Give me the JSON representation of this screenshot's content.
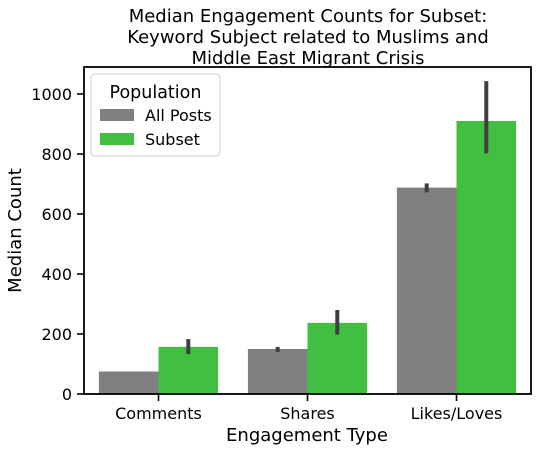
{
  "chart_data": {
    "type": "bar",
    "title_lines": [
      "Median Engagement Counts for Subset:",
      "Keyword Subject related to Muslims and",
      "Middle East Migrant Crisis"
    ],
    "xlabel": "Engagement Type",
    "ylabel": "Median Count",
    "categories": [
      "Comments",
      "Shares",
      "Likes/Loves"
    ],
    "ylim": [
      0,
      1090
    ],
    "yticks": [
      0,
      200,
      400,
      600,
      800,
      1000
    ],
    "grid": false,
    "legend": {
      "title": "Population",
      "placement": "top-left"
    },
    "series": [
      {
        "name": "All Posts",
        "color": "#808080",
        "values": [
          75,
          150,
          688
        ],
        "ci": [
          [
            75,
            75
          ],
          [
            140,
            157
          ],
          [
            672,
            702
          ]
        ]
      },
      {
        "name": "Subset",
        "color": "#40bf40",
        "values": [
          157,
          237,
          910
        ],
        "ci": [
          [
            133,
            183
          ],
          [
            198,
            280
          ],
          [
            802,
            1043
          ]
        ]
      }
    ],
    "errorbar_color": "#3f3f3f"
  }
}
